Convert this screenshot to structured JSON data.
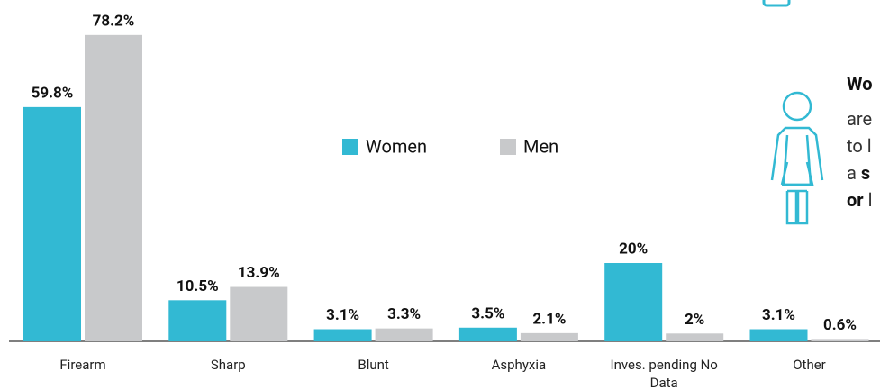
{
  "chart_data": {
    "type": "bar",
    "categories": [
      "Firearm",
      "Sharp",
      "Blunt",
      "Asphyxia",
      "Inves. pending No Data",
      "Other"
    ],
    "series": [
      {
        "name": "Women",
        "color": "#32b9d3",
        "values": [
          59.8,
          10.5,
          3.1,
          3.5,
          20,
          3.1
        ],
        "value_labels": [
          "59.8%",
          "10.5%",
          "3.1%",
          "3.5%",
          "20%",
          "3.1%"
        ]
      },
      {
        "name": "Men",
        "color": "#c8c9cb",
        "values": [
          78.2,
          13.9,
          3.3,
          2.1,
          2,
          0.6
        ],
        "value_labels": [
          "78.2%",
          "13.9%",
          "3.3%",
          "2.1%",
          "2%",
          "0.6%"
        ]
      }
    ],
    "legend": "center",
    "annotation": [
      [
        "Wo"
      ],
      [
        "are"
      ],
      [
        "to l"
      ],
      [
        "a ",
        "s"
      ],
      [
        "or ",
        "l"
      ]
    ]
  }
}
